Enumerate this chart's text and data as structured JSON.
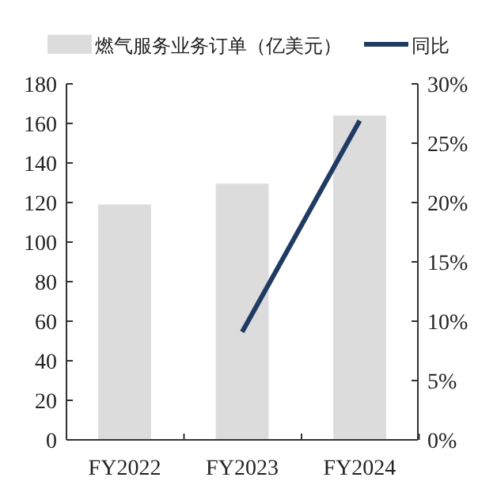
{
  "chart_data": {
    "type": "bar",
    "categories": [
      "FY2022",
      "FY2023",
      "FY2024"
    ],
    "series": [
      {
        "name": "燃气服务业务订单（亿美元）",
        "color": "#dcdcdc",
        "values": [
          119,
          129.5,
          164
        ]
      },
      {
        "name": "同比",
        "type": "line",
        "axis": "y2",
        "color": "#1f3b63",
        "values": [
          null,
          9.1,
          26.9
        ]
      }
    ],
    "ylim": [
      0,
      180
    ],
    "yticks": [
      0,
      20,
      40,
      60,
      80,
      100,
      120,
      140,
      160,
      180
    ],
    "y2lim": [
      0,
      30
    ],
    "y2ticks": [
      {
        "value": 0,
        "label": "0%"
      },
      {
        "value": 5,
        "label": "5%"
      },
      {
        "value": 10,
        "label": "10%"
      },
      {
        "value": 15,
        "label": "15%"
      },
      {
        "value": 20,
        "label": "20%"
      },
      {
        "value": 25,
        "label": "25%"
      },
      {
        "value": 30,
        "label": "30%"
      }
    ],
    "grid": false,
    "legend": "top",
    "marker": "none",
    "line_style": "solid"
  }
}
